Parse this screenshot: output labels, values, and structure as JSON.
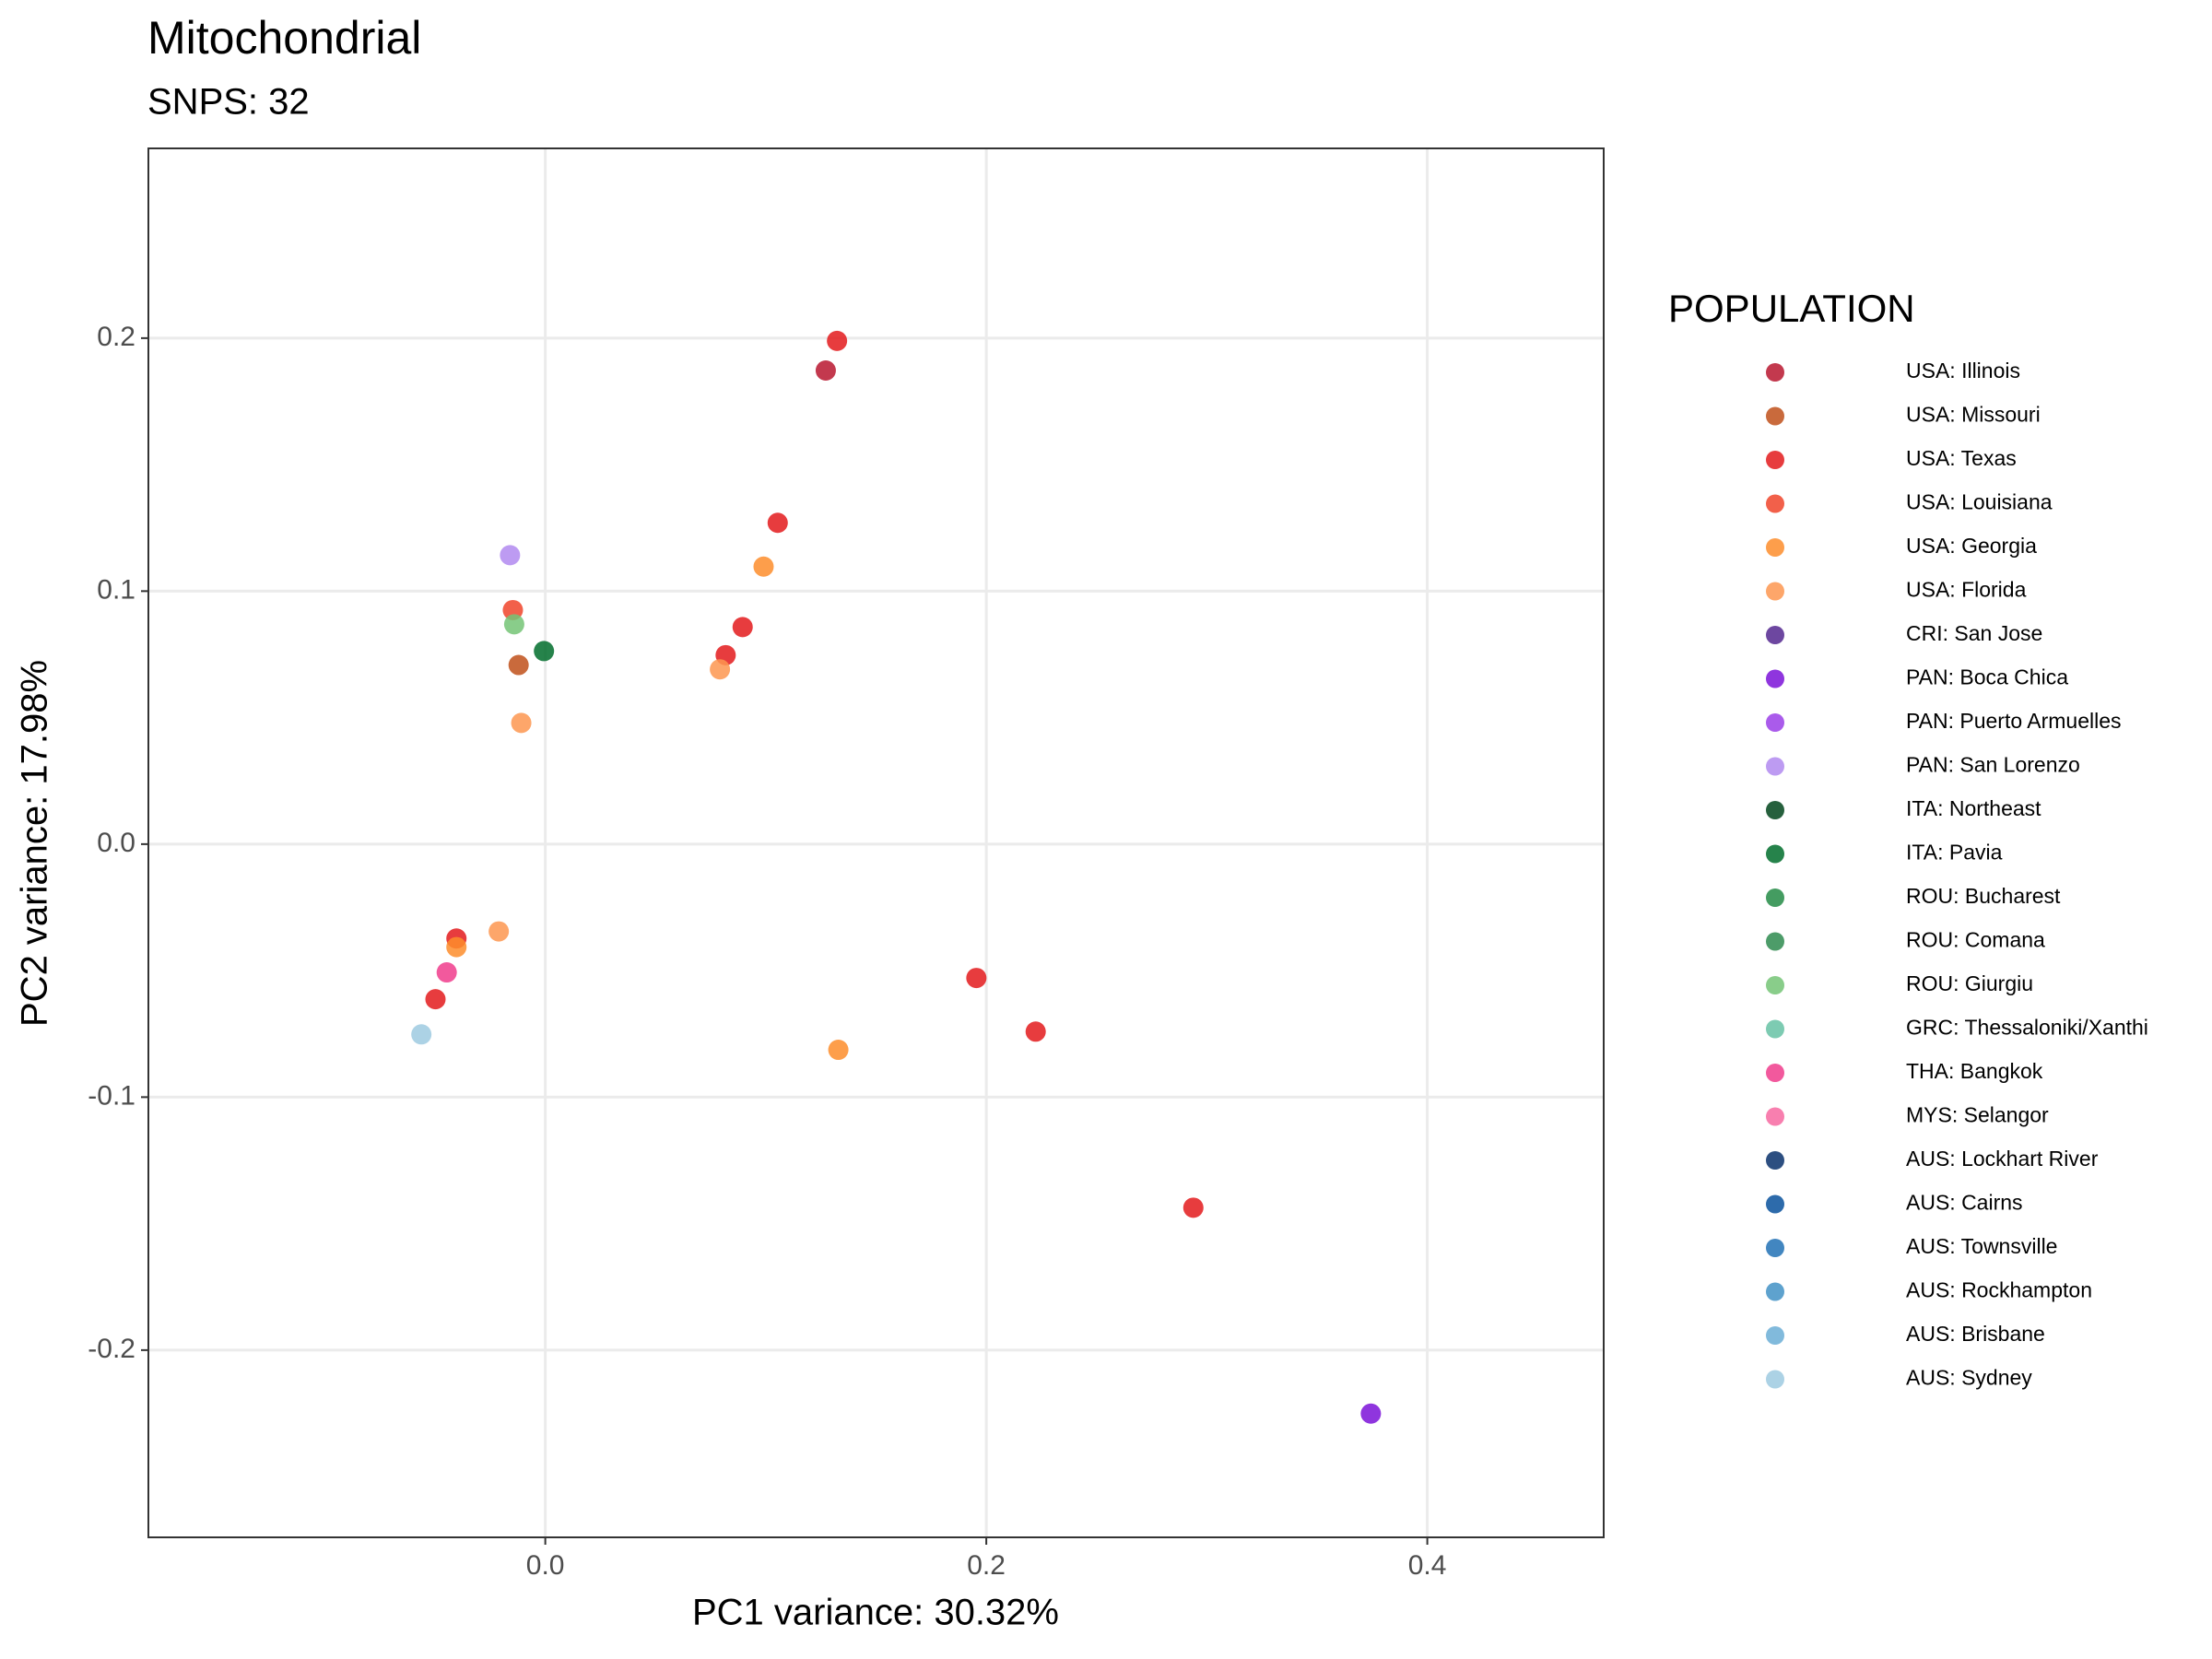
{
  "chart_data": {
    "type": "scatter",
    "title": "Mitochondrial",
    "subtitle": "SNPS: 32",
    "x_label": "PC1 variance: 30.32%",
    "y_label": "PC2 variance: 17.98%",
    "legend_title": "POPULATION",
    "legend_position": "right",
    "grid": true,
    "xlim": [
      -0.18,
      0.48
    ],
    "xticks": [
      {
        "value": 0,
        "label": "0.0"
      },
      0.2,
      0.4
    ],
    "ylim": [
      -0.274,
      0.275
    ],
    "yticks": [
      -0.2,
      -0.1,
      {
        "value": 0,
        "label": "0.0"
      },
      0.1,
      0.2
    ],
    "series": [
      {
        "name": "USA: Illinois",
        "color": "#b8162f",
        "x": [
          0.1272
        ],
        "values": [
          0.1872
        ]
      },
      {
        "name": "USA: Missouri",
        "color": "#c0501a",
        "x": [
          -0.0121
        ],
        "values": [
          0.0708
        ]
      },
      {
        "name": "USA: Texas",
        "color": "#e31a1c",
        "x": [
          0.1323,
          0.1054,
          0.0895,
          0.0818,
          -0.0403,
          -0.0498,
          0.1955,
          0.2224,
          0.2939
        ],
        "values": [
          0.1989,
          0.127,
          0.0858,
          0.0747,
          -0.0373,
          -0.0613,
          -0.0529,
          -0.0741,
          -0.1437
        ]
      },
      {
        "name": "USA: Louisiana",
        "color": "#f0442a",
        "x": [
          -0.0147
        ],
        "values": [
          0.0925
        ]
      },
      {
        "name": "USA: Georgia",
        "color": "#fd8d2c",
        "x": [
          0.099,
          0.1329,
          -0.0403
        ],
        "values": [
          0.1097,
          -0.0813,
          -0.0407
        ]
      },
      {
        "name": "USA: Florida",
        "color": "#fd9650",
        "x": [
          0.0792,
          -0.0109,
          -0.0211
        ],
        "values": [
          0.0691,
          0.0479,
          -0.0345
        ]
      },
      {
        "name": "CRI: San Jose",
        "color": "#54278f",
        "x": [],
        "values": []
      },
      {
        "name": "PAN: Boca Chica",
        "color": "#7b12d8",
        "x": [
          0.3744
        ],
        "values": [
          -0.2251
        ]
      },
      {
        "name": "PAN: Puerto Armuelles",
        "color": "#9b3ee8",
        "x": [],
        "values": []
      },
      {
        "name": "PAN: San Lorenzo",
        "color": "#b18af0",
        "x": [
          -0.016
        ],
        "values": [
          0.1142
        ]
      },
      {
        "name": "ITA: Northeast",
        "color": "#00441b",
        "x": [],
        "values": []
      },
      {
        "name": "ITA: Pavia",
        "color": "#006d2c",
        "x": [
          -0.0006
        ],
        "values": [
          0.0763
        ]
      },
      {
        "name": "ROU: Bucharest",
        "color": "#238b45",
        "x": [],
        "values": []
      },
      {
        "name": "ROU: Comana",
        "color": "#2e8b4f",
        "x": [],
        "values": []
      },
      {
        "name": "ROU: Giurgiu",
        "color": "#74c476",
        "x": [
          -0.0141
        ],
        "values": [
          0.0869
        ]
      },
      {
        "name": "GRC: Thessaloniki/Xanthi",
        "color": "#66c2a4",
        "x": [],
        "values": []
      },
      {
        "name": "THA: Bangkok",
        "color": "#f03c8c",
        "x": [
          -0.0447
        ],
        "values": [
          -0.0507
        ]
      },
      {
        "name": "MYS: Selangor",
        "color": "#f768a1",
        "x": [],
        "values": []
      },
      {
        "name": "AUS: Lockhart River",
        "color": "#08306b",
        "x": [],
        "values": []
      },
      {
        "name": "AUS: Cairns",
        "color": "#08519c",
        "x": [],
        "values": []
      },
      {
        "name": "AUS: Townsville",
        "color": "#2171b5",
        "x": [],
        "values": []
      },
      {
        "name": "AUS: Rockhampton",
        "color": "#4292c6",
        "x": [],
        "values": []
      },
      {
        "name": "AUS: Brisbane",
        "color": "#6baed6",
        "x": [],
        "values": []
      },
      {
        "name": "AUS: Sydney",
        "color": "#9ecae1",
        "x": [
          -0.0562
        ],
        "values": [
          -0.0752
        ]
      }
    ]
  }
}
